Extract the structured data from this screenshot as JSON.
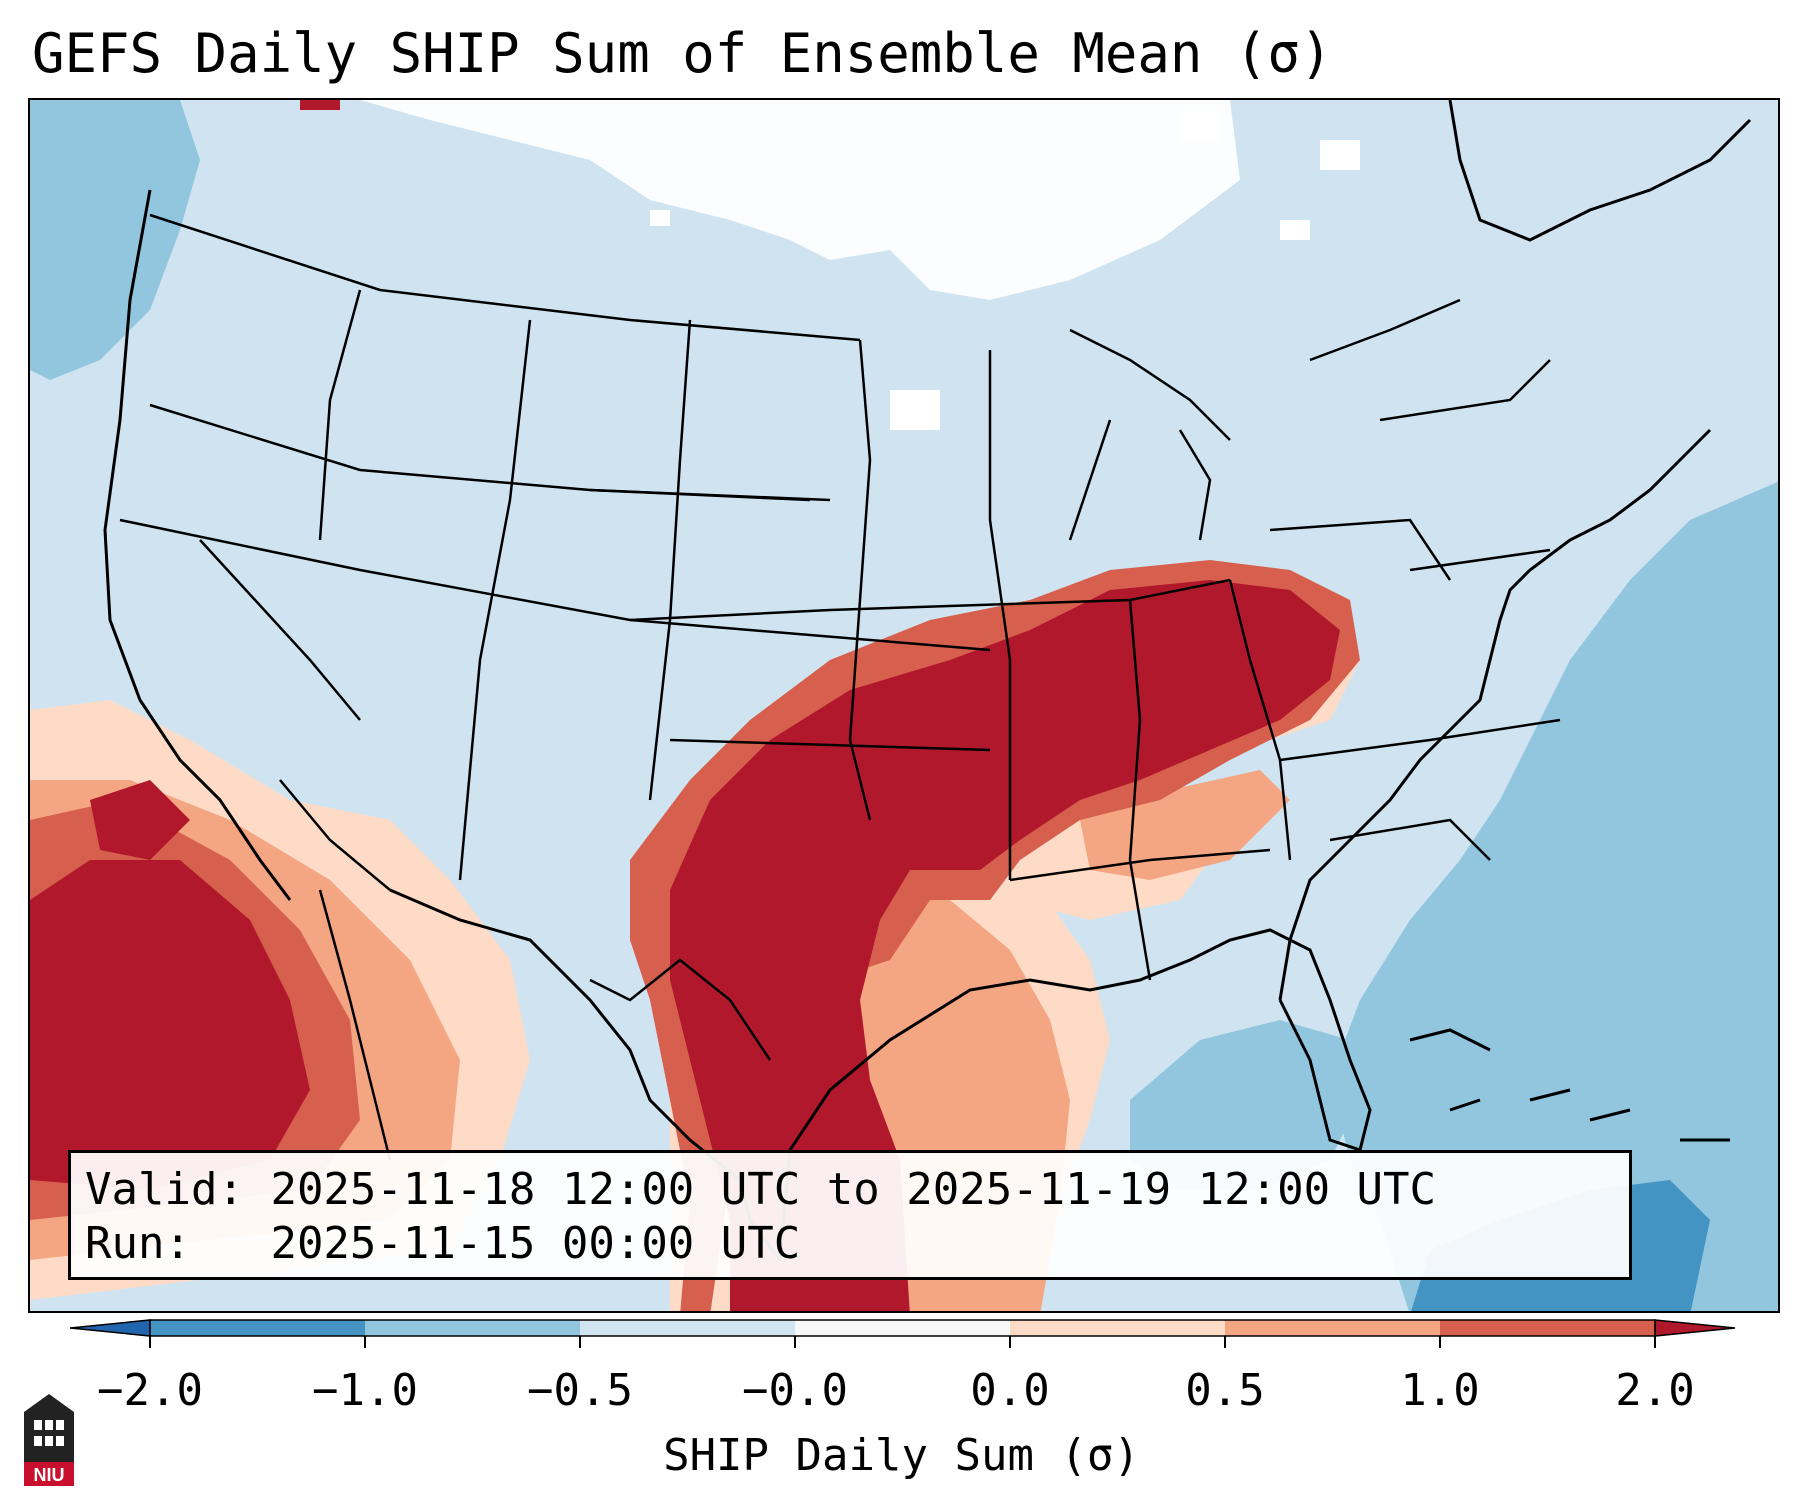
{
  "title": "GEFS Daily SHIP Sum of Ensemble Mean (σ)",
  "info": {
    "valid_label": "Valid:",
    "valid_value": "2025-11-18 12:00 UTC to 2025-11-19 12:00 UTC",
    "run_label": "Run:",
    "run_value": "2025-11-15 00:00 UTC"
  },
  "colorbar": {
    "label": "SHIP Daily Sum (σ)",
    "tick_labels": [
      "−2.0",
      "−1.0",
      "−0.5",
      "−0.0",
      "0.0",
      "0.5",
      "1.0",
      "2.0"
    ],
    "colors": {
      "below_-2": "#2166ac",
      "-2_to_-1": "#4393c3",
      "-1_to_-0.5": "#92c5de",
      "-0.5_to_0": "#d1e5f0",
      "0_to_0": "#f7f7f7",
      "0_to_0.5": "#fddbc7",
      "0.5_to_1": "#f4a582",
      "1_to_2": "#d6604d",
      "above_2": "#b2182b"
    }
  },
  "logo": {
    "text": "NIU"
  }
}
